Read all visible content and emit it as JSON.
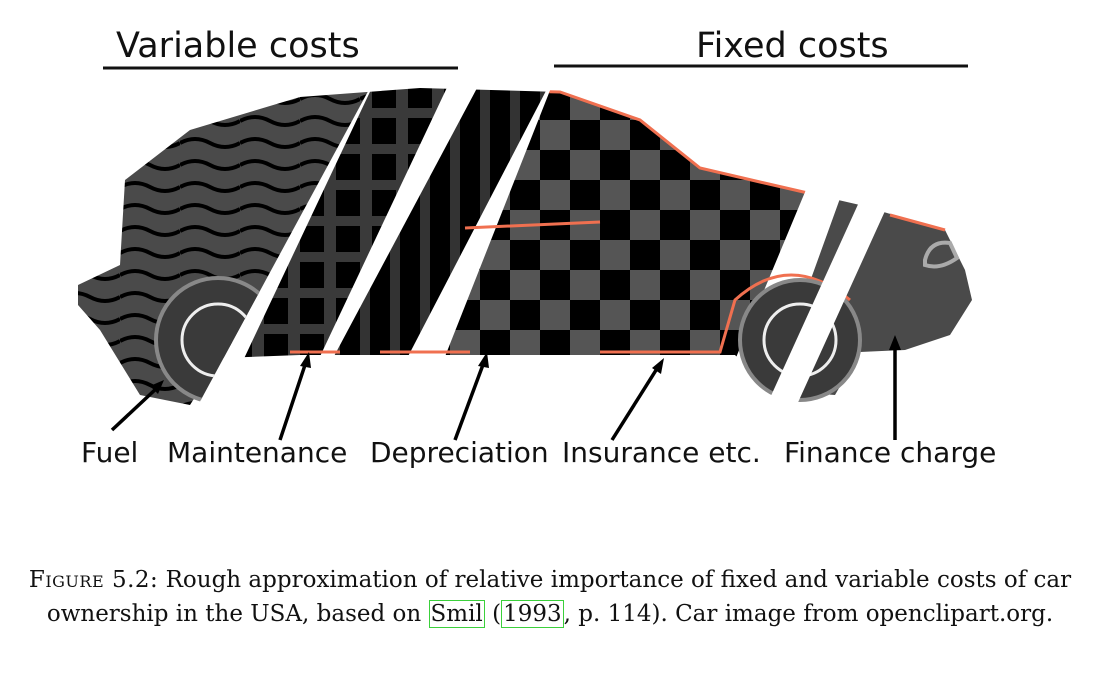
{
  "groups": {
    "variable": "Variable costs",
    "fixed": "Fixed costs"
  },
  "parts": [
    "Fuel",
    "Maintenance",
    "Depreciation",
    "Insurance etc.",
    "Finance charge"
  ],
  "caption": {
    "prefix": "Figure 5.2:",
    "text_a": "Rough approximation of relative importance of fixed and variable costs of car ownership in the USA, based on",
    "cite_author": "Smil",
    "cite_year": "1993",
    "text_b": ", p. 114). Car image from openclipart.org."
  },
  "colors": {
    "body_dark": "#4a4a4a",
    "black": "#000000",
    "outline": "#f07050",
    "wheel_rim": "#888888"
  }
}
